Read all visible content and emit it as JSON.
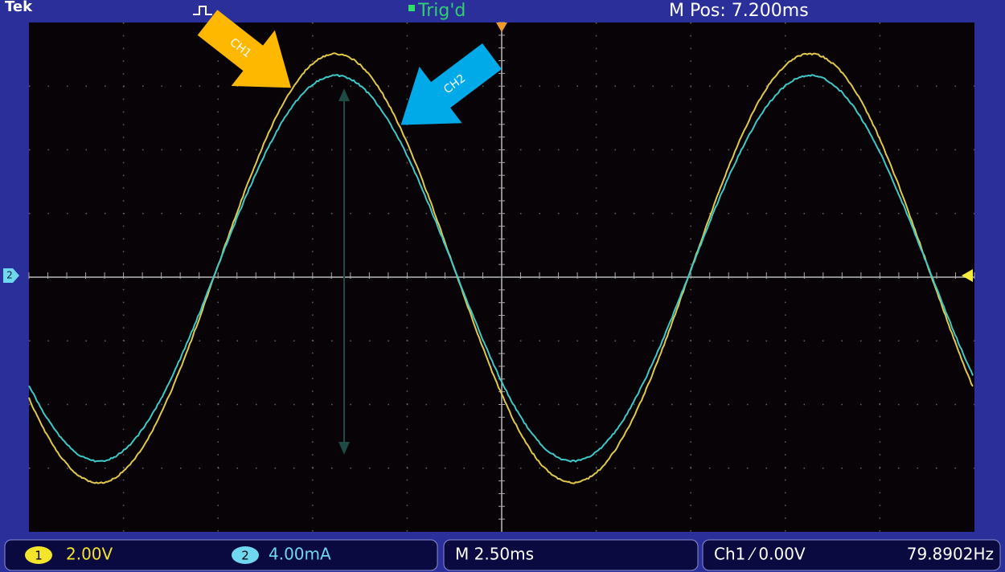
{
  "header": {
    "brand": "Tek",
    "status": "Trig'd",
    "position": "M Pos: 7.200ms"
  },
  "annotations": {
    "ch1": "CH1",
    "ch2": "CH2",
    "ref_marker": "2"
  },
  "footer": {
    "ch1_badge": "1",
    "ch1_scale": "2.00V",
    "ch2_badge": "2",
    "ch2_scale": "4.00mA",
    "timebase": "M 2.50ms",
    "trigger": "Ch1 ⁄ 0.00V",
    "frequency": "79.8902Hz"
  }
}
